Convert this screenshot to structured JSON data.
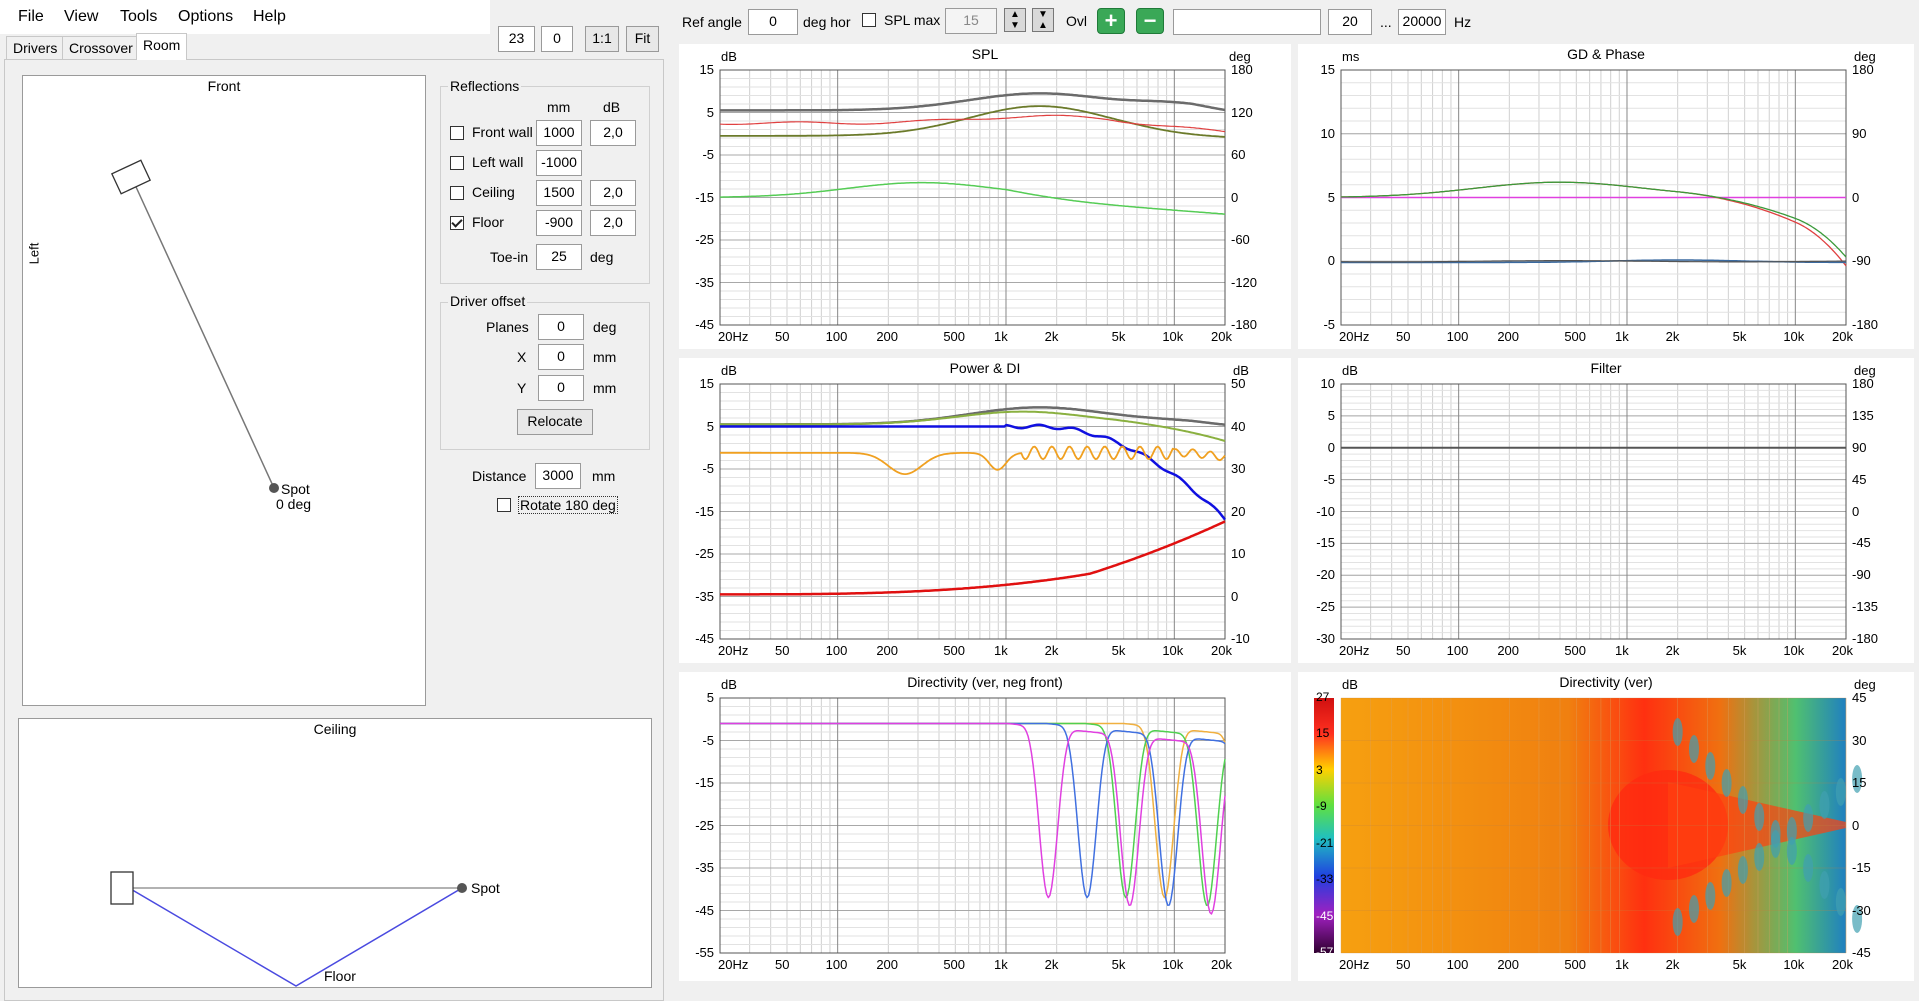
{
  "menu": {
    "file": "File",
    "view": "View",
    "tools": "Tools",
    "options": "Options",
    "help": "Help"
  },
  "toolbar_left": {
    "zoom_val": "23",
    "offset_val": "0",
    "one_to_one": "1:1",
    "fit": "Fit"
  },
  "tabs": {
    "drivers": "Drivers",
    "crossover": "Crossover",
    "room": "Room"
  },
  "front_view": {
    "title": "Front",
    "side_label": "Left",
    "spot_label": "Spot",
    "spot_angle": "0 deg"
  },
  "ceiling_view": {
    "title": "Ceiling",
    "spot_label": "Spot",
    "floor_label": "Floor"
  },
  "reflections": {
    "title": "Reflections",
    "col_mm": "mm",
    "col_db": "dB",
    "rows": [
      {
        "label": "Front wall",
        "checked": false,
        "mm": "1000",
        "db": "2,0"
      },
      {
        "label": "Left wall",
        "checked": false,
        "mm": "-1000",
        "db": ""
      },
      {
        "label": "Ceiling",
        "checked": false,
        "mm": "1500",
        "db": "2,0"
      },
      {
        "label": "Floor",
        "checked": true,
        "mm": "-900",
        "db": "2,0"
      }
    ],
    "toein_label": "Toe-in",
    "toein_val": "25",
    "toein_unit": "deg"
  },
  "driver_offset": {
    "title": "Driver offset",
    "planes_label": "Planes",
    "planes_val": "0",
    "planes_unit": "deg",
    "x_label": "X",
    "x_val": "0",
    "x_unit": "mm",
    "y_label": "Y",
    "y_val": "0",
    "y_unit": "mm",
    "relocate": "Relocate"
  },
  "distance": {
    "label": "Distance",
    "val": "3000",
    "unit": "mm",
    "rotate_label": "Rotate 180 deg",
    "rotate_checked": false
  },
  "top_toolbar": {
    "ref_angle_label": "Ref angle",
    "ref_angle_val": "0",
    "deg_hor": "deg hor",
    "spl_max_label": "SPL max",
    "spl_max_val": "15",
    "ovl_label": "Ovl",
    "freq_from": "20",
    "dots": "...",
    "freq_to": "20000",
    "hz": "Hz"
  },
  "colors": {
    "grid": "#c8c8c8",
    "grid_major": "#9a9a9a",
    "zoom_plus": "#3aa857",
    "pink": "#e040e0"
  },
  "graphs": {
    "spl": {
      "title": "SPL",
      "left_unit": "dB",
      "right_unit": "deg",
      "left_ticks": [
        "15",
        "5",
        "-5",
        "-15",
        "-25",
        "-35",
        "-45"
      ],
      "right_ticks": [
        "180",
        "120",
        "60",
        "0",
        "-60",
        "-120",
        "-180"
      ]
    },
    "gd": {
      "title": "GD & Phase",
      "left_unit": "ms",
      "right_unit": "deg",
      "left_ticks": [
        "15",
        "10",
        "5",
        "0",
        "-5"
      ],
      "right_ticks": [
        "180",
        "90",
        "0",
        "-90",
        "-180"
      ]
    },
    "power": {
      "title": "Power & DI",
      "left_unit": "dB",
      "right_unit": "dB",
      "left_ticks": [
        "15",
        "5",
        "-5",
        "-15",
        "-25",
        "-35",
        "-45"
      ],
      "right_ticks": [
        "50",
        "40",
        "30",
        "20",
        "10",
        "0",
        "-10"
      ]
    },
    "filter": {
      "title": "Filter",
      "left_unit": "dB",
      "right_unit": "deg",
      "left_ticks": [
        "10",
        "5",
        "0",
        "-5",
        "-10",
        "-15",
        "-20",
        "-25",
        "-30"
      ],
      "right_ticks": [
        "180",
        "135",
        "90",
        "45",
        "0",
        "-45",
        "-90",
        "-135",
        "-180"
      ]
    },
    "dirneg": {
      "title": "Directivity (ver, neg front)",
      "left_unit": "dB",
      "left_ticks": [
        "5",
        "-5",
        "-15",
        "-25",
        "-35",
        "-45",
        "-55"
      ]
    },
    "dirver": {
      "title": "Directivity (ver)",
      "left_unit": "dB",
      "right_unit": "deg",
      "scale_ticks": [
        "27",
        "15",
        "3",
        "-9",
        "-21",
        "-33",
        "-45",
        "-57"
      ],
      "right_ticks": [
        "45",
        "30",
        "15",
        "0",
        "-15",
        "-30",
        "-45"
      ]
    }
  },
  "freq_ticks": [
    "20Hz",
    "50",
    "100",
    "200",
    "500",
    "1k",
    "2k",
    "5k",
    "10k",
    "20k"
  ]
}
